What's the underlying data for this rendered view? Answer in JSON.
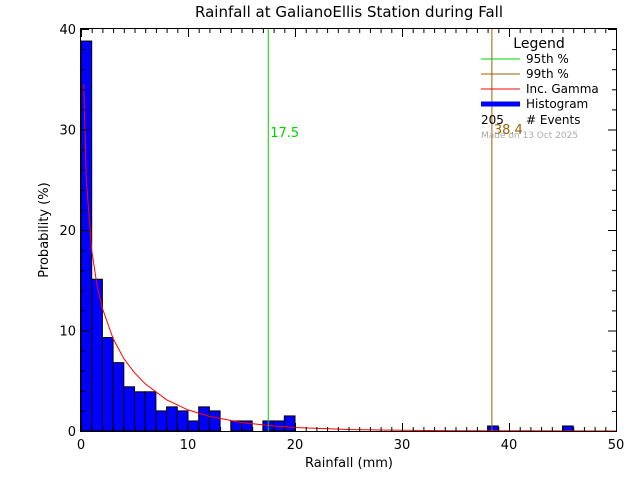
{
  "chart_data": {
    "type": "bar",
    "title": "Rainfall at GalianoEllis Station during Fall",
    "xlabel": "Rainfall (mm)",
    "ylabel": "Probability (%)",
    "xlim": [
      0,
      50
    ],
    "ylim": [
      0,
      40
    ],
    "xticks": [
      "0",
      "10",
      "20",
      "30",
      "40",
      "50"
    ],
    "yticks": [
      "0",
      "10",
      "20",
      "30",
      "40"
    ],
    "bin_width": 1,
    "histogram": {
      "name": "Histogram",
      "color": "#0000ff",
      "bins": [
        {
          "x": 0,
          "value": 38.8
        },
        {
          "x": 1,
          "value": 15.1
        },
        {
          "x": 2,
          "value": 9.3
        },
        {
          "x": 3,
          "value": 6.8
        },
        {
          "x": 4,
          "value": 4.4
        },
        {
          "x": 5,
          "value": 3.9
        },
        {
          "x": 6,
          "value": 3.9
        },
        {
          "x": 7,
          "value": 2.0
        },
        {
          "x": 8,
          "value": 2.4
        },
        {
          "x": 9,
          "value": 2.0
        },
        {
          "x": 10,
          "value": 1.0
        },
        {
          "x": 11,
          "value": 2.4
        },
        {
          "x": 12,
          "value": 2.0
        },
        {
          "x": 14,
          "value": 1.0
        },
        {
          "x": 15,
          "value": 1.0
        },
        {
          "x": 17,
          "value": 1.0
        },
        {
          "x": 18,
          "value": 1.0
        },
        {
          "x": 19,
          "value": 1.5
        },
        {
          "x": 38,
          "value": 0.5
        },
        {
          "x": 45,
          "value": 0.5
        }
      ]
    },
    "gamma_curve": {
      "name": "Inc. Gamma",
      "color": "#ff0000",
      "x": [
        0.25,
        0.5,
        1,
        1.5,
        2,
        3,
        4,
        5,
        6,
        8,
        10,
        12,
        15,
        18,
        20,
        25,
        30,
        35,
        40,
        45,
        50
      ],
      "y": [
        34.5,
        25.0,
        18.0,
        14.5,
        12.2,
        9.2,
        7.2,
        5.8,
        4.7,
        3.1,
        2.1,
        1.45,
        0.85,
        0.5,
        0.35,
        0.15,
        0.07,
        0.03,
        0.015,
        0.007,
        0.003
      ]
    },
    "percentile_lines": [
      {
        "name": "95th %",
        "value": 17.5,
        "label": "17.5",
        "color": "#00d000"
      },
      {
        "name": "99th %",
        "value": 38.4,
        "label": "38.4",
        "color": "#a06000"
      }
    ],
    "legend": {
      "title": "Legend",
      "placement": "top-right",
      "entries": [
        {
          "label": "95th %",
          "color": "#00d000",
          "style": "line"
        },
        {
          "label": "99th %",
          "color": "#a06000",
          "style": "line"
        },
        {
          "label": "Inc. Gamma",
          "color": "#ff0000",
          "style": "line"
        },
        {
          "label": "Histogram",
          "color": "#0000ff",
          "style": "thick"
        }
      ],
      "events_count": "205",
      "events_label": "# Events",
      "modified": "Made on 13 Oct 2025"
    }
  }
}
